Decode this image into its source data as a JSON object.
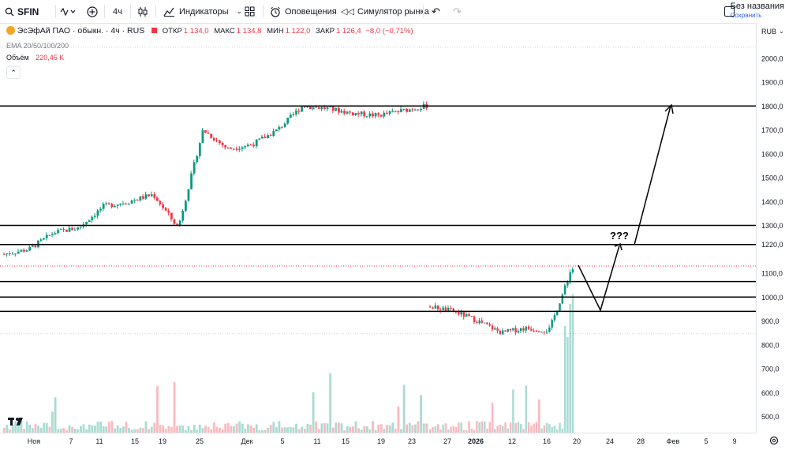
{
  "toolbar": {
    "symbol": "SFIN",
    "interval": "4ч",
    "indicators_label": "Индикаторы",
    "alerts_label": "Оповещения",
    "replay_label": "Симулятор рынка",
    "layout_name": "Без названия",
    "save_label": "Сохранить"
  },
  "legend": {
    "title": "ЭсЭфАй ПАО · обыкн. · 4ч · RUS",
    "open_label": "ОТКР",
    "open": "1 134,0",
    "high_label": "МАКС",
    "high": "1 134,8",
    "low_label": "МИН",
    "low": "1 122,0",
    "close_label": "ЗАКР",
    "close": "1 126,4",
    "change": "−8,0 (−0,71%)",
    "ema": "EMA 20/50/100/200",
    "volume_label": "Объём",
    "volume_value": "220,45 K"
  },
  "price_axis": {
    "currency": "RUB",
    "ticks": [
      "2000,0",
      "1900,0",
      "1800,0",
      "1700,0",
      "1600,0",
      "1500,0",
      "1400,0",
      "1300,0",
      "1220,0",
      "1100,0",
      "1000,0",
      "900,0",
      "800,0",
      "700,0",
      "600,0",
      "500,0"
    ]
  },
  "time_axis": {
    "labels": [
      "Ноя",
      "7",
      "11",
      "15",
      "19",
      "25",
      "Дек",
      "5",
      "11",
      "15",
      "19",
      "23",
      "27",
      "2026",
      "12",
      "16",
      "20",
      "24",
      "28",
      "Фев",
      "5",
      "9"
    ]
  },
  "price_labels": [
    {
      "value": 1800,
      "text": "1800,0"
    },
    {
      "value": 1300,
      "text": "1300,0"
    },
    {
      "value": 1220,
      "text": "1220,0"
    },
    {
      "value": 1126.4,
      "text": "1126,4"
    },
    {
      "value": 1065,
      "text": "1065,0"
    },
    {
      "value": 1000,
      "text": "1000,0"
    },
    {
      "value": 940,
      "text": "940,0"
    }
  ],
  "annotation": {
    "text": "???"
  },
  "colors": {
    "up": "#089981",
    "down": "#f23645",
    "line": "#000000",
    "accent": "#2962ff"
  },
  "chart_data": {
    "type": "candlestick",
    "title": "ЭсЭфАй ПАО · обыкн. · 4ч · RUS",
    "ylim": [
      450,
      2070
    ],
    "horizontal_levels": [
      1800,
      1300,
      1220,
      1065,
      1000,
      940
    ],
    "last_price": 1126.4,
    "x": [
      "Ноя",
      "7",
      "11",
      "15",
      "19",
      "25",
      "Дек",
      "5",
      "11",
      "15",
      "19",
      "23",
      "27",
      "2026",
      "12",
      "16",
      "20"
    ],
    "segments": [
      {
        "name": "",
        "close": [
          1180,
          1200,
          1270,
          1290,
          1380,
          1400,
          1430,
          1290,
          1700,
          1620,
          1640,
          1700,
          1800,
          1790,
          1770,
          1760,
          1780,
          1800
        ]
      },
      {
        "name": "",
        "close": [
          960,
          940,
          900,
          850,
          870,
          860,
          1126.4
        ]
      }
    ]
  }
}
